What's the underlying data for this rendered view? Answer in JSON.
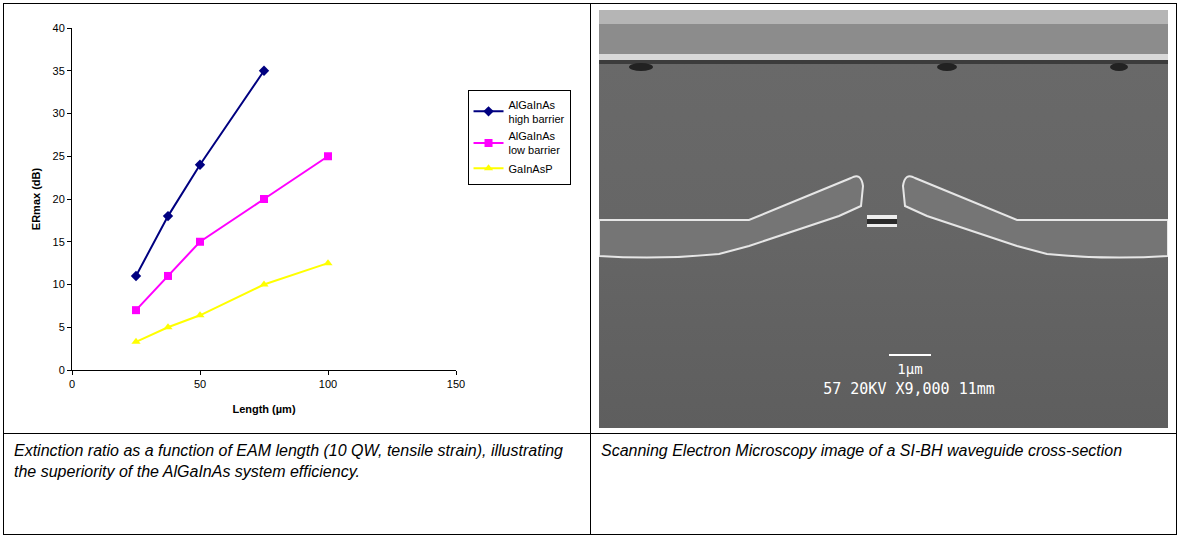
{
  "chart_data": {
    "type": "line",
    "xlabel": "Length (µm)",
    "ylabel": "ERmax (dB)",
    "xlim": [
      0,
      150
    ],
    "xticks": [
      0,
      50,
      100,
      150
    ],
    "ylim": [
      0,
      40
    ],
    "yticks": [
      0,
      5,
      10,
      15,
      20,
      25,
      30,
      35,
      40
    ],
    "grid": false,
    "legend": "right",
    "series": [
      {
        "name": "AlGaInAs high barrier",
        "color": "#000080",
        "marker": "diamond",
        "x": [
          25,
          37.5,
          50,
          75
        ],
        "values": [
          11,
          18,
          24,
          35
        ]
      },
      {
        "name": "AlGaInAs low barrier",
        "color": "#ff00ff",
        "marker": "square",
        "x": [
          25,
          37.5,
          50,
          75,
          100
        ],
        "values": [
          7,
          11,
          15,
          20,
          25
        ]
      },
      {
        "name": "GaInAsP",
        "color": "#ffff00",
        "marker": "triangle-up",
        "x": [
          25,
          37.5,
          50,
          75,
          100
        ],
        "values": [
          3.3,
          5,
          6.4,
          10,
          12.5
        ]
      }
    ]
  },
  "figure": {
    "captions": [
      "Extinction ratio as a function of EAM length (10 QW, tensile strain), illustrating the superiority of the AlGaInAs system efficiency.",
      "Scanning Electron Microscopy image of a SI-BH waveguide cross-section"
    ],
    "sem_image": {
      "scale_bar": "1μm",
      "info": [
        "57",
        "20KV",
        "X9,000",
        "11mm"
      ]
    }
  }
}
